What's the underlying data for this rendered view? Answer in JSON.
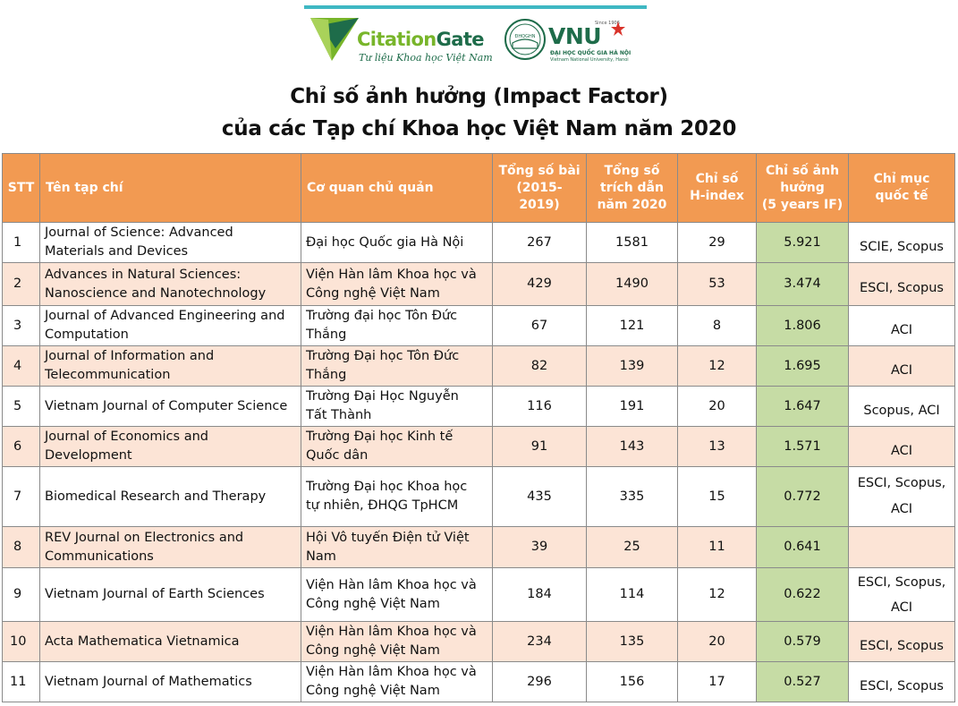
{
  "header": {
    "brand_left": {
      "name_part1": "Citation",
      "name_part2": "Gate",
      "tagline": "Tư liệu Khoa học Việt Nam"
    },
    "brand_right": {
      "acronym": "VNU",
      "since": "Since 1906",
      "seal_text": "ĐHQGHN",
      "line1": "ĐẠI HỌC QUỐC GIA HÀ NỘI",
      "line2": "Vietnam National University, Hanoi"
    },
    "title_line1": "Chỉ số ảnh hưởng (Impact Factor)",
    "title_line2": "của các Tạp chí Khoa học Việt Nam năm 2020"
  },
  "colors": {
    "header_bg": "#f29a52",
    "band_bg": "#fce4d6",
    "impact_factor_bg": "#c6dca5",
    "brand_green": "#1e6c4a",
    "brand_lime": "#78b52a"
  },
  "table": {
    "columns": {
      "stt": "STT",
      "journal": "Tên tạp chí",
      "agency": "Cơ quan chủ quản",
      "articles": [
        "Tổng số bài",
        "(2015-2019)"
      ],
      "citations": [
        "Tổng số",
        "trích dẫn",
        "năm 2020"
      ],
      "hindex": [
        "Chỉ số",
        "H-index"
      ],
      "if": [
        "Chỉ số ảnh",
        "hưởng",
        "(5 years IF)"
      ],
      "intl": [
        "Chỉ mục",
        "quốc tế"
      ]
    },
    "rows": [
      {
        "stt": "1",
        "journal": [
          "Journal of Science: Advanced",
          "Materials and Devices"
        ],
        "agency": [
          "Đại học Quốc gia Hà Nội"
        ],
        "articles": "267",
        "citations": "1581",
        "hindex": "29",
        "if": "5.921",
        "intl": [
          "SCIE, Scopus"
        ]
      },
      {
        "stt": "2",
        "journal": [
          "Advances in Natural Sciences:",
          "Nanoscience and Nanotechnology"
        ],
        "agency": [
          "Viện Hàn lâm Khoa học và",
          "Công nghệ Việt Nam"
        ],
        "articles": "429",
        "citations": "1490",
        "hindex": "53",
        "if": "3.474",
        "intl": [
          "ESCI, Scopus"
        ]
      },
      {
        "stt": "3",
        "journal": [
          "Journal of Advanced Engineering  and",
          "Computation"
        ],
        "agency": [
          "Trường đại học Tôn Đức",
          "Thắng"
        ],
        "articles": "67",
        "citations": "121",
        "hindex": "8",
        "if": "1.806",
        "intl": [
          "ACI"
        ]
      },
      {
        "stt": "4",
        "journal": [
          "Journal of Information and",
          "Telecommunication"
        ],
        "agency": [
          "Trường Đại học Tôn Đức",
          "Thắng"
        ],
        "articles": "82",
        "citations": "139",
        "hindex": "12",
        "if": "1.695",
        "intl": [
          "ACI"
        ]
      },
      {
        "stt": "5",
        "journal": [
          "Vietnam Journal of Computer Science"
        ],
        "agency": [
          "Trường Đại Học Nguyễn",
          "Tất Thành"
        ],
        "articles": "116",
        "citations": "191",
        "hindex": "20",
        "if": "1.647",
        "intl": [
          "Scopus, ACI"
        ]
      },
      {
        "stt": "6",
        "journal": [
          "Journal of Economics and",
          "Development"
        ],
        "agency": [
          "Trường Đại học Kinh tế",
          "Quốc dân"
        ],
        "articles": "91",
        "citations": "143",
        "hindex": "13",
        "if": "1.571",
        "intl": [
          "ACI"
        ]
      },
      {
        "stt": "7",
        "journal": [
          "Biomedical Research and Therapy"
        ],
        "agency": [
          "Trường Đại học Khoa học",
          "tự nhiên, ĐHQG TpHCM"
        ],
        "articles": "435",
        "citations": "335",
        "hindex": "15",
        "if": "0.772",
        "intl": [
          "ESCI, Scopus,",
          "ACI"
        ]
      },
      {
        "stt": "8",
        "journal": [
          "REV Journal on Electronics and",
          "Communications"
        ],
        "agency": [
          "Hội Vô tuyến Điện tử Việt",
          "Nam"
        ],
        "articles": "39",
        "citations": "25",
        "hindex": "11",
        "if": "0.641",
        "intl": []
      },
      {
        "stt": "9",
        "journal": [
          "Vietnam Journal of Earth Sciences"
        ],
        "agency": [
          "Viện Hàn lâm Khoa học và",
          "Công nghệ Việt Nam"
        ],
        "articles": "184",
        "citations": "114",
        "hindex": "12",
        "if": "0.622",
        "intl": [
          "ESCI, Scopus,",
          "ACI"
        ]
      },
      {
        "stt": "10",
        "journal": [
          "Acta Mathematica Vietnamica"
        ],
        "agency": [
          "Viện Hàn lâm Khoa học và",
          "Công nghệ Việt Nam"
        ],
        "articles": "234",
        "citations": "135",
        "hindex": "20",
        "if": "0.579",
        "intl": [
          "ESCI, Scopus"
        ]
      },
      {
        "stt": "11",
        "journal": [
          "Vietnam Journal of Mathematics"
        ],
        "agency": [
          "Viện Hàn lâm Khoa học và",
          "Công nghệ Việt Nam"
        ],
        "articles": "296",
        "citations": "156",
        "hindex": "17",
        "if": "0.527",
        "intl": [
          "ESCI, Scopus"
        ]
      }
    ]
  }
}
